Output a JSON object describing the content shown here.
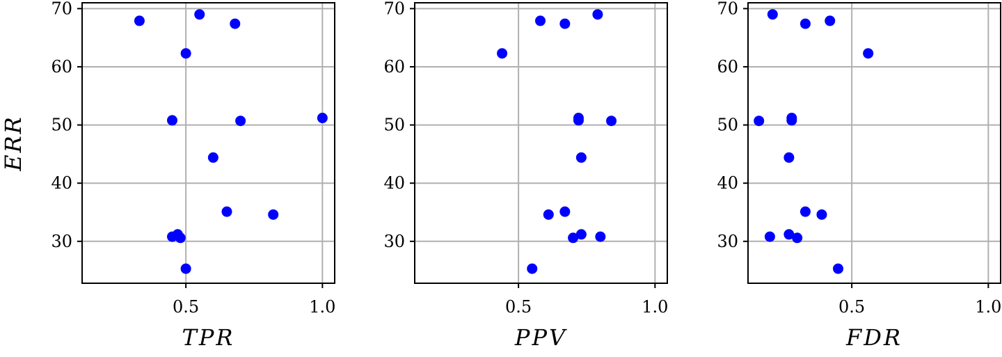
{
  "chart_data": [
    {
      "type": "scatter",
      "xlabel": "TPR",
      "ylabel": "ERR",
      "xlim": [
        0.12,
        1.045
      ],
      "ylim": [
        22.8,
        71.0
      ],
      "xticks": [
        0.5,
        1.0
      ],
      "xtick_labels": [
        "0.5",
        "1.0"
      ],
      "yticks": [
        30,
        40,
        50,
        60,
        70
      ],
      "ytick_labels": [
        "30",
        "40",
        "50",
        "60",
        "70"
      ],
      "grid": true,
      "color": "#0000ff",
      "points": [
        {
          "x": 0.33,
          "y": 67.9
        },
        {
          "x": 0.55,
          "y": 69.0
        },
        {
          "x": 0.68,
          "y": 67.4
        },
        {
          "x": 0.5,
          "y": 62.3
        },
        {
          "x": 0.45,
          "y": 50.8
        },
        {
          "x": 0.7,
          "y": 50.7
        },
        {
          "x": 1.0,
          "y": 51.2
        },
        {
          "x": 0.6,
          "y": 44.4
        },
        {
          "x": 0.65,
          "y": 35.1
        },
        {
          "x": 0.82,
          "y": 34.6
        },
        {
          "x": 0.45,
          "y": 30.8
        },
        {
          "x": 0.47,
          "y": 31.2
        },
        {
          "x": 0.48,
          "y": 30.6
        },
        {
          "x": 0.5,
          "y": 25.3
        }
      ]
    },
    {
      "type": "scatter",
      "xlabel": "PPV",
      "ylabel": "",
      "xlim": [
        0.12,
        1.045
      ],
      "ylim": [
        22.8,
        71.0
      ],
      "xticks": [
        0.5,
        1.0
      ],
      "xtick_labels": [
        "0.5",
        "1.0"
      ],
      "yticks": [
        30,
        40,
        50,
        60,
        70
      ],
      "ytick_labels": [
        "30",
        "40",
        "50",
        "60",
        "70"
      ],
      "grid": true,
      "color": "#0000ff",
      "points": [
        {
          "x": 0.58,
          "y": 67.9
        },
        {
          "x": 0.67,
          "y": 67.4
        },
        {
          "x": 0.79,
          "y": 69.0
        },
        {
          "x": 0.44,
          "y": 62.3
        },
        {
          "x": 0.72,
          "y": 51.2
        },
        {
          "x": 0.72,
          "y": 50.8
        },
        {
          "x": 0.84,
          "y": 50.7
        },
        {
          "x": 0.73,
          "y": 44.4
        },
        {
          "x": 0.67,
          "y": 35.1
        },
        {
          "x": 0.61,
          "y": 34.6
        },
        {
          "x": 0.73,
          "y": 31.2
        },
        {
          "x": 0.7,
          "y": 30.6
        },
        {
          "x": 0.8,
          "y": 30.8
        },
        {
          "x": 0.55,
          "y": 25.3
        }
      ]
    },
    {
      "type": "scatter",
      "xlabel": "FDR",
      "ylabel": "",
      "xlim": [
        0.12,
        1.045
      ],
      "ylim": [
        22.8,
        71.0
      ],
      "xticks": [
        0.5,
        1.0
      ],
      "xtick_labels": [
        "0.5",
        "1.0"
      ],
      "yticks": [
        30,
        40,
        50,
        60,
        70
      ],
      "ytick_labels": [
        "30",
        "40",
        "50",
        "60",
        "70"
      ],
      "grid": true,
      "color": "#0000ff",
      "points": [
        {
          "x": 0.21,
          "y": 69.0
        },
        {
          "x": 0.33,
          "y": 67.4
        },
        {
          "x": 0.42,
          "y": 67.9
        },
        {
          "x": 0.56,
          "y": 62.3
        },
        {
          "x": 0.16,
          "y": 50.7
        },
        {
          "x": 0.28,
          "y": 51.2
        },
        {
          "x": 0.28,
          "y": 50.8
        },
        {
          "x": 0.27,
          "y": 44.4
        },
        {
          "x": 0.33,
          "y": 35.1
        },
        {
          "x": 0.39,
          "y": 34.6
        },
        {
          "x": 0.2,
          "y": 30.8
        },
        {
          "x": 0.27,
          "y": 31.2
        },
        {
          "x": 0.3,
          "y": 30.6
        },
        {
          "x": 0.45,
          "y": 25.3
        }
      ]
    }
  ]
}
